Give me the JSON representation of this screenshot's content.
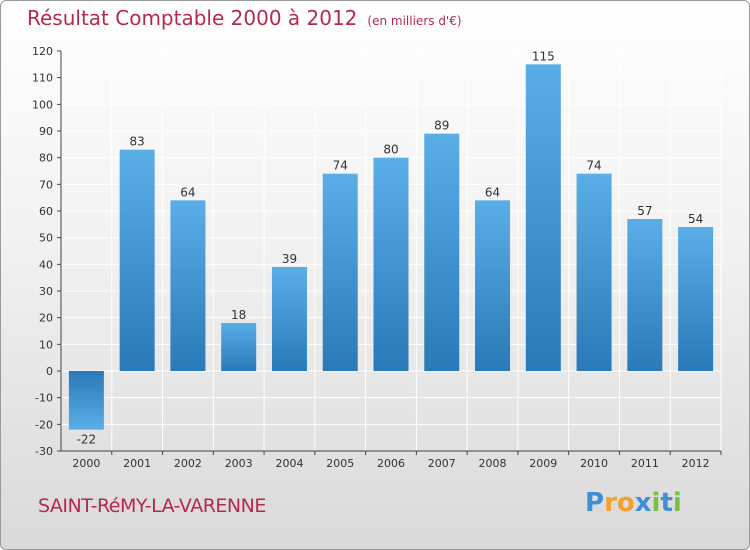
{
  "title": "Résultat Comptable 2000 à 2012",
  "subtitle": "(en milliers d'€)",
  "commune": "SAINT-RéMY-LA-VARENNE",
  "logo": {
    "text": "Proxiti",
    "letters": [
      "P",
      "r",
      "o",
      "x",
      "i",
      "t",
      "i"
    ],
    "colors": [
      "#3f8fd6",
      "#f2a12e",
      "#f2a12e",
      "#3f8fd6",
      "#7ac143",
      "#3f8fd6",
      "#7ac143"
    ]
  },
  "colors": {
    "bar_top": "#5aaee8",
    "bar_bottom": "#2a79b8",
    "title": "#b5294d",
    "grid": "#ffffff"
  },
  "chart_data": {
    "type": "bar",
    "title": "Résultat Comptable 2000 à 2012",
    "xlabel": "",
    "ylabel": "en milliers d'€",
    "categories": [
      "2000",
      "2001",
      "2002",
      "2003",
      "2004",
      "2005",
      "2006",
      "2007",
      "2008",
      "2009",
      "2010",
      "2011",
      "2012"
    ],
    "values": [
      -22,
      83,
      64,
      18,
      39,
      74,
      80,
      89,
      64,
      115,
      74,
      57,
      54
    ],
    "ylim": [
      -30,
      120
    ],
    "yticks": [
      -30,
      -20,
      -10,
      0,
      10,
      20,
      30,
      40,
      50,
      60,
      70,
      80,
      90,
      100,
      110,
      120
    ],
    "grid": true
  }
}
